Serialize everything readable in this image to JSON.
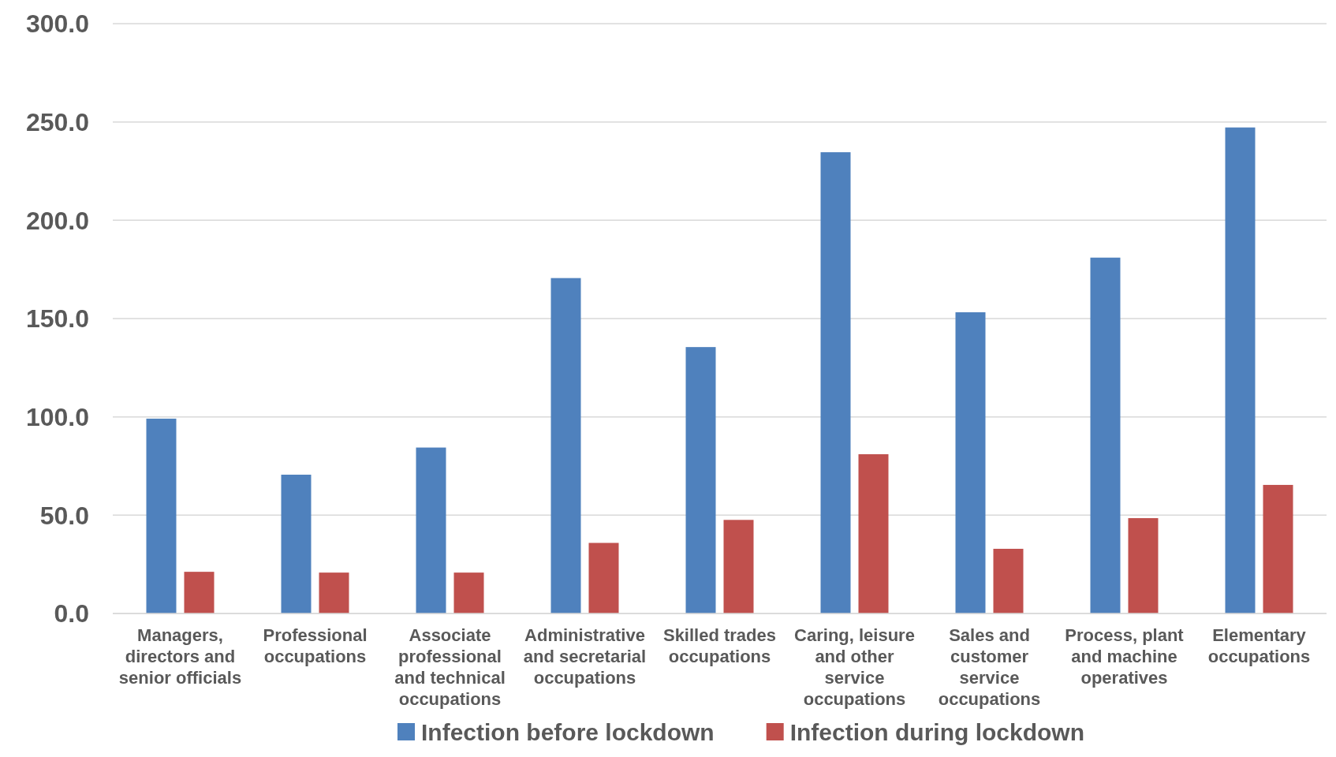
{
  "chart_data": {
    "type": "bar",
    "categories": [
      "Managers, directors and senior officials",
      "Professional occupations",
      "Associate professional and technical occupations",
      "Administrative and secretarial occupations",
      "Skilled trades occupations",
      "Caring, leisure and other service occupations",
      "Sales and customer service occupations",
      "Process, plant and machine operatives",
      "Elementary occupations"
    ],
    "series": [
      {
        "name": "Infection before lockdown",
        "color": "#4f81bd",
        "values": [
          99.1,
          70.6,
          84.4,
          170.6,
          135.5,
          234.6,
          153.2,
          181.0,
          247.2
        ]
      },
      {
        "name": "Infection during lockdown",
        "color": "#c0504d",
        "values": [
          21.2,
          20.8,
          20.8,
          35.9,
          47.6,
          81.0,
          32.9,
          48.5,
          65.4
        ]
      }
    ],
    "ylim": [
      0,
      300
    ],
    "yticks": [
      {
        "value": 0,
        "label": "0.0"
      },
      {
        "value": 50,
        "label": "50.0"
      },
      {
        "value": 100,
        "label": "100.0"
      },
      {
        "value": 150,
        "label": "150.0"
      },
      {
        "value": 200,
        "label": "200.0"
      },
      {
        "value": 250,
        "label": "250.0"
      },
      {
        "value": 300,
        "label": "300.0"
      }
    ],
    "grid": "y",
    "legend": "bottom"
  }
}
